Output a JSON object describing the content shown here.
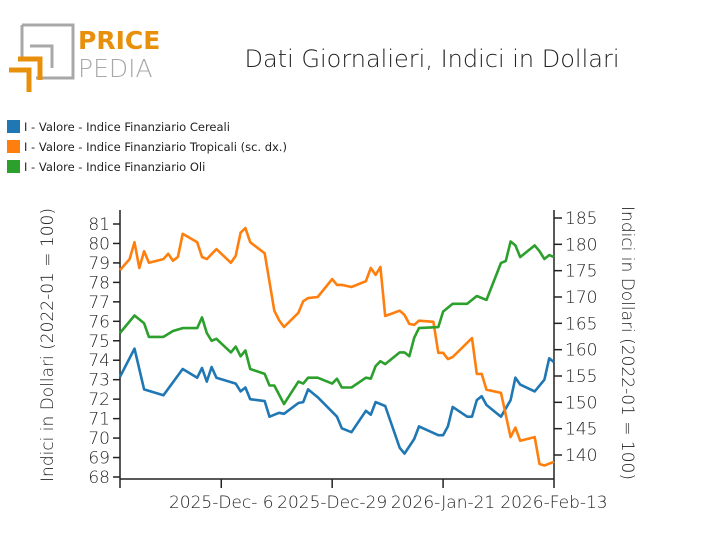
{
  "logo": {
    "line1": "PRICE",
    "line2": "PEDIA",
    "colors": {
      "orange": "#e8900c",
      "gray": "#a8a8a8"
    }
  },
  "chart_data": {
    "type": "line",
    "title": "Dati Giornalieri, Indici in Dollari",
    "ylabel": "Indici in Dollari (2022-01 = 100)",
    "ylabel_right": "Indici in Dollari (2022-01 = 100)",
    "xlabel": "",
    "xlim": [
      "2025-11-15",
      "2026-02-13"
    ],
    "x_ticks": [
      {
        "date": "2025-12-06",
        "label": "2025-Dec- 6"
      },
      {
        "date": "2025-12-29",
        "label": "2025-Dec-29"
      },
      {
        "date": "2026-01-21",
        "label": "2026-Jan-21"
      },
      {
        "date": "2026-02-13",
        "label": "2026-Feb-13"
      }
    ],
    "ylim": [
      67.9,
      81.6
    ],
    "ylim_right": [
      135.5,
      187
    ],
    "y_ticks": [
      68,
      69,
      70,
      71,
      72,
      73,
      74,
      75,
      76,
      77,
      78,
      79,
      80,
      81
    ],
    "y_ticks_right": [
      140,
      145,
      150,
      155,
      160,
      165,
      170,
      175,
      180,
      185
    ],
    "grid": false,
    "legend_placement": "top-left",
    "series": [
      {
        "name": "I - Valore - Indice Finanziario Cereali",
        "axis": "left",
        "color": "#1f77b4",
        "points": [
          [
            "2025-11-15",
            73.15
          ],
          [
            "2025-11-18",
            74.6
          ],
          [
            "2025-11-20",
            72.5
          ],
          [
            "2025-11-24",
            72.2
          ],
          [
            "2025-11-28",
            73.55
          ],
          [
            "2025-12-01",
            73.1
          ],
          [
            "2025-12-02",
            73.6
          ],
          [
            "2025-12-03",
            72.9
          ],
          [
            "2025-12-04",
            73.65
          ],
          [
            "2025-12-05",
            73.1
          ],
          [
            "2025-12-09",
            72.8
          ],
          [
            "2025-12-10",
            72.4
          ],
          [
            "2025-12-11",
            72.6
          ],
          [
            "2025-12-12",
            72.0
          ],
          [
            "2025-12-15",
            71.9
          ],
          [
            "2025-12-16",
            71.1
          ],
          [
            "2025-12-18",
            71.3
          ],
          [
            "2025-12-19",
            71.25
          ],
          [
            "2025-12-22",
            71.8
          ],
          [
            "2025-12-23",
            71.85
          ],
          [
            "2025-12-24",
            72.5
          ],
          [
            "2025-12-26",
            72.1
          ],
          [
            "2025-12-30",
            71.1
          ],
          [
            "2025-12-31",
            70.5
          ],
          [
            "2026-01-02",
            70.3
          ],
          [
            "2026-01-05",
            71.4
          ],
          [
            "2026-01-06",
            71.2
          ],
          [
            "2026-01-07",
            71.85
          ],
          [
            "2026-01-09",
            71.65
          ],
          [
            "2026-01-12",
            69.5
          ],
          [
            "2026-01-13",
            69.2
          ],
          [
            "2026-01-15",
            69.95
          ],
          [
            "2026-01-16",
            70.6
          ],
          [
            "2026-01-20",
            70.15
          ],
          [
            "2026-01-21",
            70.15
          ],
          [
            "2026-01-22",
            70.6
          ],
          [
            "2026-01-23",
            71.6
          ],
          [
            "2026-01-26",
            71.1
          ],
          [
            "2026-01-27",
            71.1
          ],
          [
            "2026-01-28",
            71.95
          ],
          [
            "2026-01-29",
            72.15
          ],
          [
            "2026-01-30",
            71.7
          ],
          [
            "2026-02-02",
            71.1
          ],
          [
            "2026-02-04",
            71.95
          ],
          [
            "2026-02-05",
            73.1
          ],
          [
            "2026-02-06",
            72.75
          ],
          [
            "2026-02-09",
            72.4
          ],
          [
            "2026-02-11",
            73.0
          ],
          [
            "2026-02-12",
            74.1
          ],
          [
            "2026-02-13",
            73.9
          ]
        ]
      },
      {
        "name": "I - Valore - Indice Finanziario Tropicali (sc. dx.)",
        "axis": "right",
        "color": "#ff7f0e",
        "points": [
          [
            "2025-11-15",
            175.1
          ],
          [
            "2025-11-17",
            177.2
          ],
          [
            "2025-11-18",
            180.4
          ],
          [
            "2025-11-19",
            175.5
          ],
          [
            "2025-11-20",
            178.7
          ],
          [
            "2025-11-21",
            176.5
          ],
          [
            "2025-11-24",
            177.2
          ],
          [
            "2025-11-25",
            178.2
          ],
          [
            "2025-11-26",
            176.9
          ],
          [
            "2025-11-27",
            177.6
          ],
          [
            "2025-11-28",
            182.0
          ],
          [
            "2025-12-01",
            180.4
          ],
          [
            "2025-12-02",
            177.6
          ],
          [
            "2025-12-03",
            177.2
          ],
          [
            "2025-12-05",
            179.1
          ],
          [
            "2025-12-08",
            176.5
          ],
          [
            "2025-12-09",
            177.8
          ],
          [
            "2025-12-10",
            182.2
          ],
          [
            "2025-12-11",
            183.1
          ],
          [
            "2025-12-12",
            180.4
          ],
          [
            "2025-12-15",
            178.3
          ],
          [
            "2025-12-17",
            167.4
          ],
          [
            "2025-12-18",
            165.6
          ],
          [
            "2025-12-19",
            164.3
          ],
          [
            "2025-12-22",
            167.0
          ],
          [
            "2025-12-23",
            169.2
          ],
          [
            "2025-12-24",
            169.8
          ],
          [
            "2025-12-26",
            170.0
          ],
          [
            "2025-12-29",
            173.4
          ],
          [
            "2025-12-30",
            172.3
          ],
          [
            "2025-12-31",
            172.3
          ],
          [
            "2026-01-02",
            171.9
          ],
          [
            "2026-01-05",
            173.0
          ],
          [
            "2026-01-06",
            175.5
          ],
          [
            "2026-01-07",
            174.2
          ],
          [
            "2026-01-08",
            175.7
          ],
          [
            "2026-01-09",
            166.4
          ],
          [
            "2026-01-12",
            167.4
          ],
          [
            "2026-01-13",
            166.6
          ],
          [
            "2026-01-14",
            164.9
          ],
          [
            "2026-01-15",
            164.7
          ],
          [
            "2026-01-16",
            165.5
          ],
          [
            "2026-01-19",
            165.3
          ],
          [
            "2026-01-20",
            159.4
          ],
          [
            "2026-01-21",
            159.4
          ],
          [
            "2026-01-22",
            158.2
          ],
          [
            "2026-01-23",
            158.6
          ],
          [
            "2026-01-27",
            162.2
          ],
          [
            "2026-01-28",
            155.4
          ],
          [
            "2026-01-29",
            155.4
          ],
          [
            "2026-01-30",
            152.4
          ],
          [
            "2026-02-02",
            151.8
          ],
          [
            "2026-02-04",
            143.4
          ],
          [
            "2026-02-05",
            145.2
          ],
          [
            "2026-02-06",
            142.7
          ],
          [
            "2026-02-09",
            143.4
          ],
          [
            "2026-02-10",
            138.3
          ],
          [
            "2026-02-11",
            138.0
          ],
          [
            "2026-02-13",
            138.7
          ]
        ]
      },
      {
        "name": "I - Valore - Indice Finanziario Oli",
        "axis": "left",
        "color": "#2ca02c",
        "points": [
          [
            "2025-11-15",
            75.4
          ],
          [
            "2025-11-18",
            76.3
          ],
          [
            "2025-11-20",
            75.9
          ],
          [
            "2025-11-21",
            75.2
          ],
          [
            "2025-11-24",
            75.2
          ],
          [
            "2025-11-26",
            75.5
          ],
          [
            "2025-11-28",
            75.65
          ],
          [
            "2025-12-01",
            75.65
          ],
          [
            "2025-12-02",
            76.2
          ],
          [
            "2025-12-03",
            75.4
          ],
          [
            "2025-12-04",
            75.0
          ],
          [
            "2025-12-05",
            75.1
          ],
          [
            "2025-12-08",
            74.4
          ],
          [
            "2025-12-09",
            74.7
          ],
          [
            "2025-12-10",
            74.2
          ],
          [
            "2025-12-11",
            74.5
          ],
          [
            "2025-12-12",
            73.55
          ],
          [
            "2025-12-15",
            73.3
          ],
          [
            "2025-12-16",
            72.7
          ],
          [
            "2025-12-17",
            72.7
          ],
          [
            "2025-12-19",
            71.75
          ],
          [
            "2025-12-22",
            72.9
          ],
          [
            "2025-12-23",
            72.8
          ],
          [
            "2025-12-24",
            73.1
          ],
          [
            "2025-12-26",
            73.1
          ],
          [
            "2025-12-29",
            72.8
          ],
          [
            "2025-12-30",
            73.05
          ],
          [
            "2025-12-31",
            72.6
          ],
          [
            "2026-01-02",
            72.6
          ],
          [
            "2026-01-05",
            73.1
          ],
          [
            "2026-01-06",
            73.05
          ],
          [
            "2026-01-07",
            73.7
          ],
          [
            "2026-01-08",
            73.95
          ],
          [
            "2026-01-09",
            73.8
          ],
          [
            "2026-01-12",
            74.4
          ],
          [
            "2026-01-13",
            74.4
          ],
          [
            "2026-01-14",
            74.2
          ],
          [
            "2026-01-15",
            75.15
          ],
          [
            "2026-01-16",
            75.65
          ],
          [
            "2026-01-20",
            75.7
          ],
          [
            "2026-01-21",
            76.5
          ],
          [
            "2026-01-23",
            76.9
          ],
          [
            "2026-01-26",
            76.9
          ],
          [
            "2026-01-28",
            77.3
          ],
          [
            "2026-01-30",
            77.1
          ],
          [
            "2026-02-02",
            79.0
          ],
          [
            "2026-02-03",
            79.1
          ],
          [
            "2026-02-04",
            80.1
          ],
          [
            "2026-02-05",
            79.9
          ],
          [
            "2026-02-06",
            79.3
          ],
          [
            "2026-02-09",
            79.9
          ],
          [
            "2026-02-10",
            79.6
          ],
          [
            "2026-02-11",
            79.2
          ],
          [
            "2026-02-12",
            79.4
          ],
          [
            "2026-02-13",
            79.3
          ]
        ]
      }
    ]
  }
}
